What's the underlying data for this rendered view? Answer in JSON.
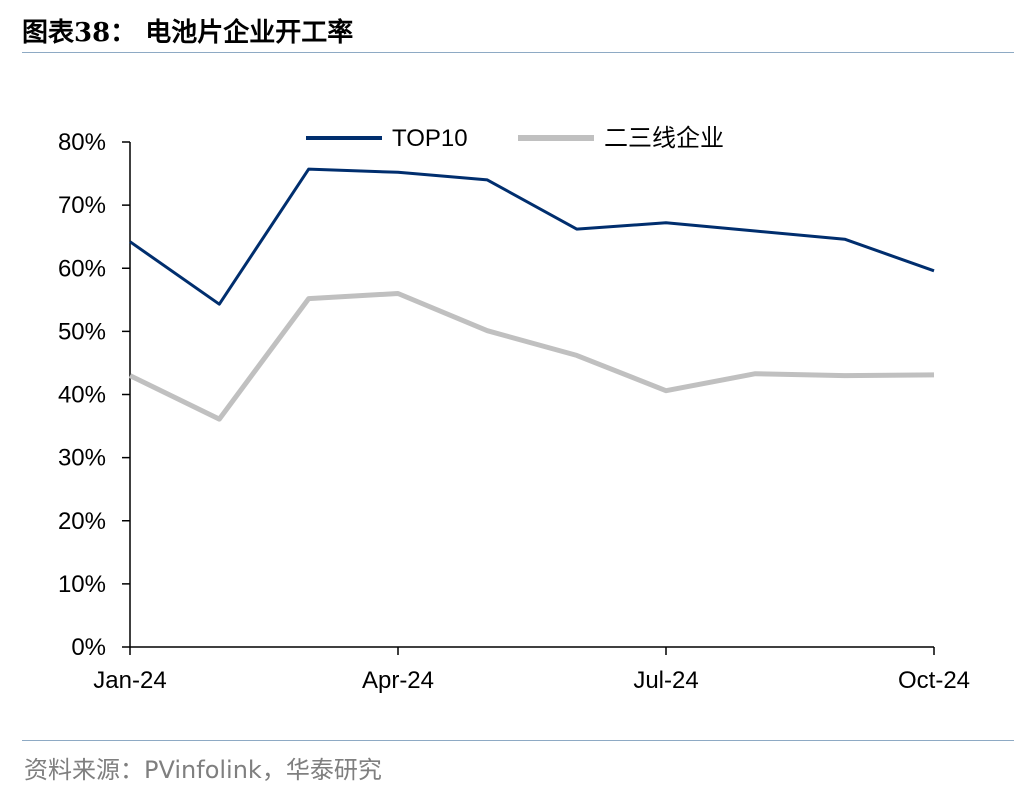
{
  "header": {
    "title": "图表38：  电池片企业开工率"
  },
  "footer": {
    "source": "资料来源：PVinfolink，华泰研究"
  },
  "chart_data": {
    "type": "line",
    "x": [
      "Jan-24",
      "Feb-24",
      "Mar-24",
      "Apr-24",
      "May-24",
      "Jun-24",
      "Jul-24",
      "Aug-24",
      "Sep-24",
      "Oct-24"
    ],
    "x_tick_labels": [
      "Jan-24",
      "Apr-24",
      "Jul-24",
      "Oct-24"
    ],
    "y_tick_labels": [
      "0%",
      "10%",
      "20%",
      "30%",
      "40%",
      "50%",
      "60%",
      "70%",
      "80%"
    ],
    "ylim": [
      0,
      80
    ],
    "y_unit": "%",
    "grid": false,
    "legend_position": "top-center",
    "series": [
      {
        "name": "TOP10",
        "color": "#002e6e",
        "values": [
          64.2,
          54.3,
          75.7,
          75.2,
          74.0,
          66.2,
          67.2,
          65.9,
          64.6,
          59.6
        ]
      },
      {
        "name": "二三线企业",
        "color": "#c0c0c0",
        "values": [
          43.0,
          36.1,
          55.2,
          56.0,
          50.1,
          46.2,
          40.6,
          43.3,
          43.0,
          43.1
        ]
      }
    ]
  }
}
